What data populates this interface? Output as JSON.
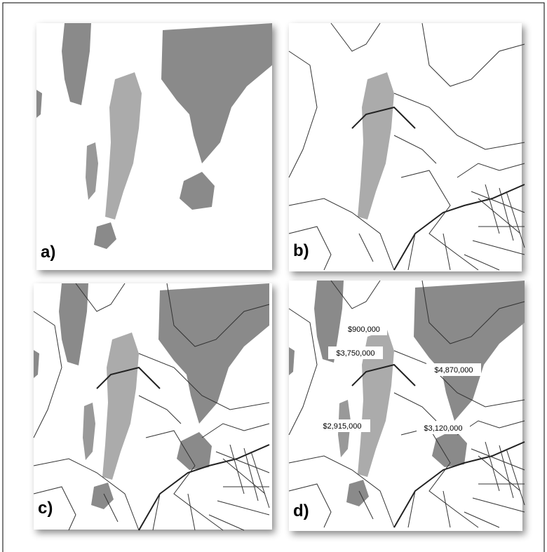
{
  "panels": [
    {
      "label": "a)"
    },
    {
      "label": "b)"
    },
    {
      "label": "c)"
    },
    {
      "label": "d)",
      "price_labels": [
        "$900,000",
        "$3,750,000",
        "$4,870,000",
        "$2,915,000",
        "$3,120,000"
      ]
    }
  ]
}
